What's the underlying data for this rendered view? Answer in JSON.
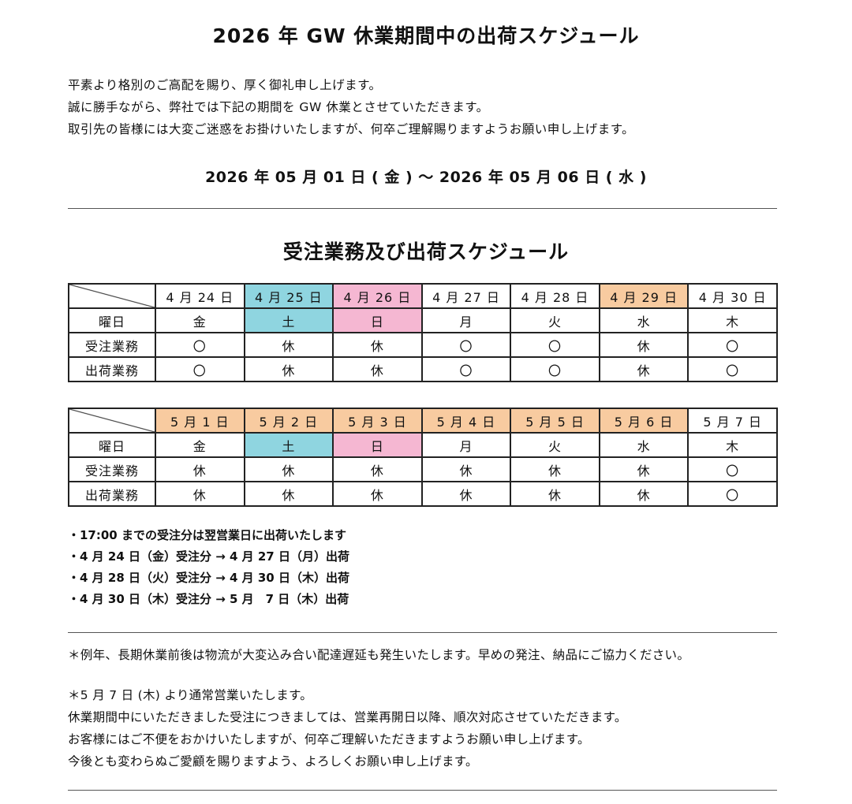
{
  "title": "2026 年 GW 休業期間中の出荷スケジュール",
  "intro": [
    "平素より格別のご高配を賜り、厚く御礼申し上げます。",
    "誠に勝手ながら、弊社では下記の期間を GW 休業とさせていただきます。",
    "取引先の皆様には大変ご迷惑をお掛けいたしますが、何卒ご理解賜りますようお願い申し上げます。"
  ],
  "period": "2026 年 05 月 01 日 ( 金 ) 〜 2026 年 05 月 06 日 ( 水 )",
  "schedule_title": "受注業務及び出荷スケジュール",
  "row_labels": [
    "曜日",
    "受注業務",
    "出荷業務"
  ],
  "colors": {
    "saturday": "#8fd5e0",
    "sunday": "#f5b7d2",
    "holiday": "#f8cba0"
  },
  "tables": [
    {
      "days": [
        {
          "date": "4 月 24 日",
          "dow": "金",
          "order": "〇",
          "ship": "〇",
          "type": ""
        },
        {
          "date": "4 月 25 日",
          "dow": "土",
          "order": "休",
          "ship": "休",
          "type": "sat"
        },
        {
          "date": "4 月 26 日",
          "dow": "日",
          "order": "休",
          "ship": "休",
          "type": "sun"
        },
        {
          "date": "4 月 27 日",
          "dow": "月",
          "order": "〇",
          "ship": "〇",
          "type": ""
        },
        {
          "date": "4 月 28 日",
          "dow": "火",
          "order": "〇",
          "ship": "〇",
          "type": ""
        },
        {
          "date": "4 月 29 日",
          "dow": "水",
          "order": "休",
          "ship": "休",
          "type": "hol"
        },
        {
          "date": "4 月 30 日",
          "dow": "木",
          "order": "〇",
          "ship": "〇",
          "type": ""
        }
      ]
    },
    {
      "days": [
        {
          "date": "5 月 1 日",
          "dow": "金",
          "order": "休",
          "ship": "休",
          "type": "hol"
        },
        {
          "date": "5 月 2 日",
          "dow": "土",
          "order": "休",
          "ship": "休",
          "type": "hol",
          "dowtype": "sat"
        },
        {
          "date": "5 月 3 日",
          "dow": "日",
          "order": "休",
          "ship": "休",
          "type": "hol",
          "dowtype": "sun"
        },
        {
          "date": "5 月 4 日",
          "dow": "月",
          "order": "休",
          "ship": "休",
          "type": "hol"
        },
        {
          "date": "5 月 5 日",
          "dow": "火",
          "order": "休",
          "ship": "休",
          "type": "hol"
        },
        {
          "date": "5 月 6 日",
          "dow": "水",
          "order": "休",
          "ship": "休",
          "type": "hol"
        },
        {
          "date": "5 月 7 日",
          "dow": "木",
          "order": "〇",
          "ship": "〇",
          "type": ""
        }
      ]
    }
  ],
  "notes": [
    "・17:00 までの受注分は翌営業日に出荷いたします",
    "・4 月 24 日（金）受注分 → 4 月 27 日（月）出荷",
    "・4 月 28 日（火）受注分 → 4 月 30 日（木）出荷",
    "・4 月 30 日（木）受注分 → 5 月　7 日（木）出荷"
  ],
  "caution": "＊例年、長期休業前後は物流が大変込み合い配達遅延も発生いたします。早めの発注、納品にご協力ください。",
  "closing": [
    "＊5 月 7 日 (木) より通常営業いたします。",
    "休業期間中にいただきました受注につきましては、営業再開日以降、順次対応させていただきます。",
    "お客様にはご不便をおかけいたしますが、何卒ご理解いただきますようお願い申し上げます。",
    "今後とも変わらぬご愛顧を賜りますよう、よろしくお願い申し上げます。"
  ]
}
